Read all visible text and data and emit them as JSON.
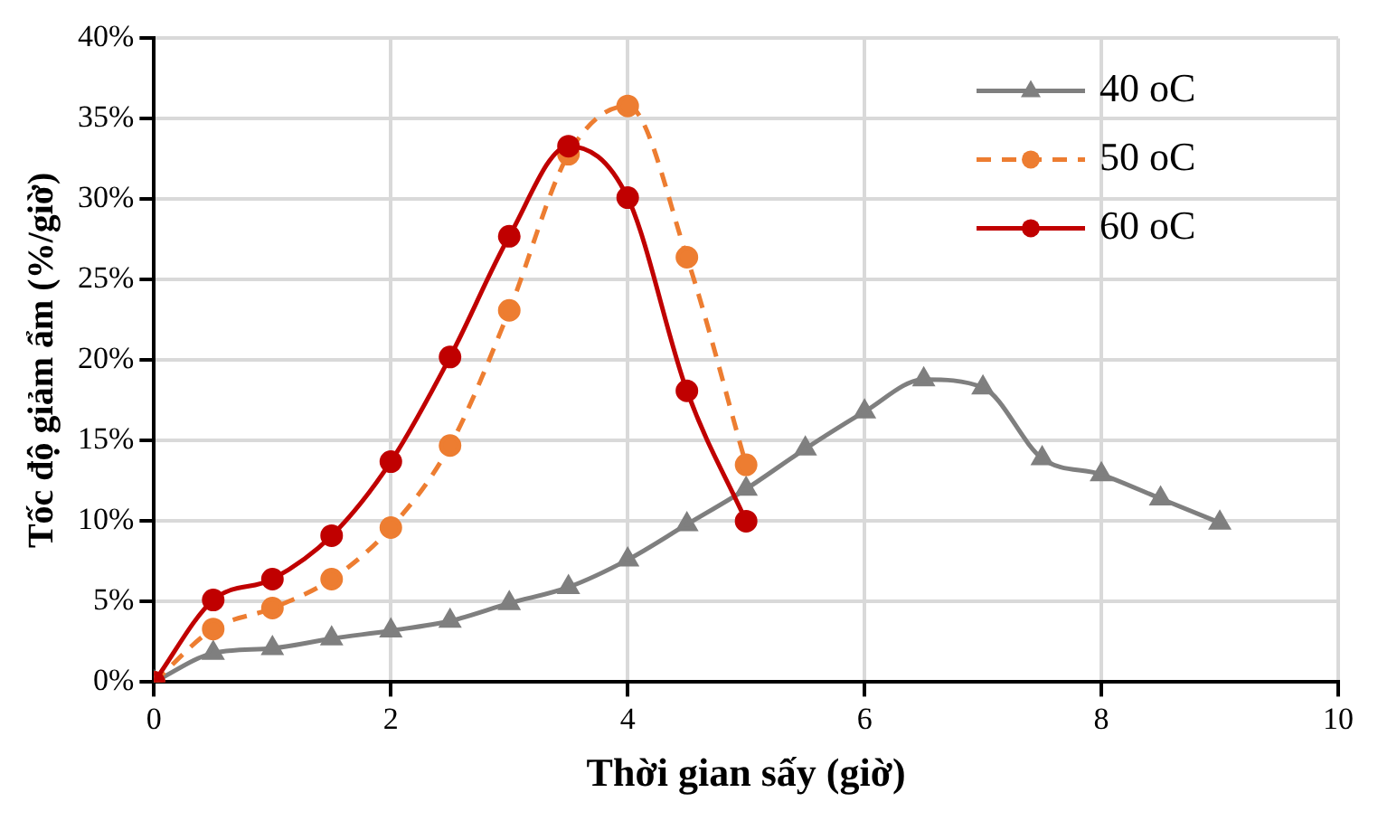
{
  "chart_data": {
    "type": "line",
    "xlabel": "Thời gian sấy (giờ)",
    "ylabel": "Tốc độ giảm ẩm (%/giờ)",
    "xlim": [
      0,
      10
    ],
    "xticks": [
      0,
      2,
      4,
      6,
      8,
      10
    ],
    "ylim": [
      0,
      40
    ],
    "yticks": [
      {
        "value": 0,
        "label": "0%"
      },
      {
        "value": 5,
        "label": "5%"
      },
      {
        "value": 10,
        "label": "10%"
      },
      {
        "value": 15,
        "label": "15%"
      },
      {
        "value": 20,
        "label": "20%"
      },
      {
        "value": 25,
        "label": "25%"
      },
      {
        "value": 30,
        "label": "30%"
      },
      {
        "value": 35,
        "label": "35%"
      },
      {
        "value": 40,
        "label": "40%"
      }
    ],
    "grid": true,
    "legend": "top right",
    "series": [
      {
        "name": "40 oC",
        "color": "#7f7f7f",
        "marker": "triangle",
        "line_style": "solid",
        "x": [
          0,
          0.5,
          1,
          1.5,
          2,
          2.5,
          3,
          3.5,
          4,
          4.5,
          5,
          5.5,
          6,
          6.5,
          7,
          7.5,
          8,
          8.5,
          9
        ],
        "values": [
          0,
          1.8,
          2.1,
          2.7,
          3.2,
          3.8,
          4.9,
          5.9,
          7.6,
          9.8,
          12.0,
          14.5,
          16.8,
          18.8,
          18.3,
          13.9,
          12.9,
          11.4,
          9.9
        ]
      },
      {
        "name": "50 oC",
        "color": "#ed7d31",
        "marker": "circle",
        "line_style": "dashed",
        "x": [
          0,
          0.5,
          1,
          1.5,
          2,
          2.5,
          3,
          3.5,
          4,
          4.5,
          5
        ],
        "values": [
          0,
          3.3,
          4.6,
          6.4,
          9.6,
          14.7,
          23.1,
          32.8,
          35.8,
          26.4,
          13.5
        ]
      },
      {
        "name": "60 oC",
        "color": "#c00000",
        "marker": "circle",
        "line_style": "solid",
        "x": [
          0,
          0.5,
          1,
          1.5,
          2,
          2.5,
          3,
          3.5,
          4,
          4.5,
          5
        ],
        "values": [
          0,
          5.1,
          6.4,
          9.1,
          13.7,
          20.2,
          27.7,
          33.3,
          30.1,
          18.1,
          10.0
        ]
      }
    ]
  }
}
